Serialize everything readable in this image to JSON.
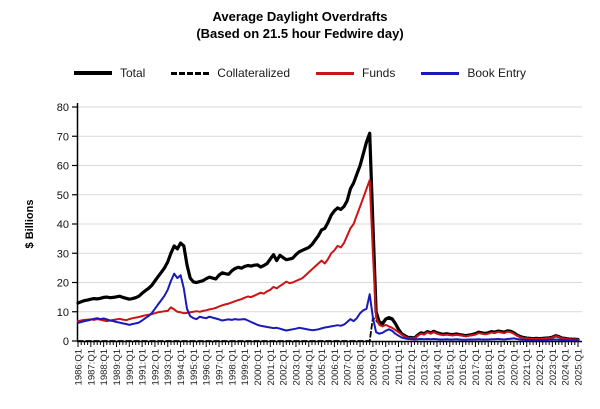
{
  "header": {
    "title": "Average Daylight Overdrafts",
    "subtitle": "(Based on 21.5 hour Fedwire day)"
  },
  "legend": {
    "items": [
      {
        "key": "total",
        "label": "Total",
        "color": "#000000",
        "dash": "solid",
        "thick": true
      },
      {
        "key": "collateralized",
        "label": "Collateralized",
        "color": "#000000",
        "dash": "dashed",
        "thick": false
      },
      {
        "key": "funds",
        "label": "Funds",
        "color": "#cc1414",
        "dash": "solid",
        "thick": false
      },
      {
        "key": "book-entry",
        "label": "Book Entry",
        "color": "#1a1ab8",
        "dash": "solid",
        "thick": false
      }
    ]
  },
  "y_axis": {
    "label": "$ Billions",
    "tick_values": [
      0,
      10,
      20,
      30,
      40,
      50,
      60,
      70,
      80
    ],
    "min": 0,
    "max": 80
  },
  "x_axis": {
    "labels": [
      "1986:Q1",
      "1987:Q1",
      "1988:Q1",
      "1989:Q1",
      "1990:Q1",
      "1991:Q1",
      "1992:Q1",
      "1993:Q1",
      "1994:Q1",
      "1995:Q1",
      "1996:Q1",
      "1997:Q1",
      "1998:Q1",
      "1999:Q1",
      "2000:Q1",
      "2001:Q1",
      "2002:Q1",
      "2003:Q1",
      "2004:Q1",
      "2005:Q1",
      "2006:Q1",
      "2007:Q1",
      "2008:Q1",
      "2009:Q1",
      "2010:Q1",
      "2011:Q1",
      "2012:Q1",
      "2013:Q1",
      "2014:Q1",
      "2015:Q1",
      "2016:Q1",
      "2017:Q1",
      "2018:Q1",
      "2019:Q1",
      "2020:Q1",
      "2021:Q1",
      "2022:Q1",
      "2023:Q1",
      "2024:Q1",
      "2025:Q1"
    ]
  },
  "chart_data": {
    "type": "line",
    "title": "Average Daylight Overdrafts",
    "subtitle": "(Based on 21.5 hour Fedwire day)",
    "xlabel": "",
    "ylabel": "$ Billions",
    "x_unit": "quarter",
    "x_start": "1986:Q1",
    "x_end": "2025:Q1",
    "x_count": 157,
    "y_min": 0,
    "y_max": 80,
    "grid": "horizontal",
    "legend_position": "top",
    "series": [
      {
        "key": "total",
        "name": "Total",
        "color": "#000000",
        "width": 3.2,
        "dash": null,
        "values": [
          13.0,
          13.4,
          13.8,
          14.0,
          14.3,
          14.5,
          14.4,
          14.6,
          14.9,
          15.0,
          14.8,
          14.9,
          15.1,
          15.3,
          14.9,
          14.6,
          14.3,
          14.5,
          14.8,
          15.3,
          16.3,
          17.2,
          18.0,
          19.0,
          20.5,
          22.0,
          23.5,
          25.0,
          27.0,
          30.0,
          32.5,
          31.5,
          33.5,
          32.5,
          26.0,
          21.5,
          20.2,
          20.0,
          20.3,
          20.6,
          21.3,
          21.8,
          21.5,
          21.2,
          22.5,
          23.3,
          23.0,
          22.8,
          24.0,
          24.8,
          25.2,
          24.9,
          25.5,
          25.8,
          25.6,
          25.9,
          26.0,
          25.3,
          25.8,
          26.5,
          28.0,
          29.5,
          27.5,
          29.3,
          28.5,
          27.8,
          28.0,
          28.3,
          29.5,
          30.5,
          31.0,
          31.5,
          32.0,
          33.0,
          34.5,
          36.0,
          38.0,
          38.5,
          40.5,
          43.0,
          44.5,
          45.5,
          45.0,
          46.0,
          48.0,
          52.0,
          54.0,
          57.0,
          60.0,
          64.0,
          68.0,
          71.0,
          40.0,
          10.0,
          6.5,
          6.0,
          7.5,
          8.0,
          7.6,
          6.0,
          4.0,
          2.5,
          1.8,
          1.2,
          1.2,
          1.0,
          2.0,
          2.8,
          2.5,
          3.2,
          2.8,
          3.3,
          2.8,
          2.5,
          2.3,
          2.5,
          2.3,
          2.2,
          2.4,
          2.2,
          2.0,
          1.8,
          2.0,
          2.2,
          2.5,
          3.0,
          2.8,
          2.6,
          2.8,
          3.2,
          3.0,
          3.4,
          3.2,
          3.0,
          3.5,
          3.3,
          2.8,
          2.0,
          1.5,
          1.2,
          1.0,
          0.9,
          0.8,
          0.9,
          0.8,
          0.9,
          1.0,
          1.1,
          1.3,
          1.8,
          1.5,
          1.0,
          0.9,
          0.7,
          0.6,
          0.6,
          0.5
        ]
      },
      {
        "key": "collateralized",
        "name": "Collateralized",
        "color": "#000000",
        "width": 1.8,
        "dash": "5 3",
        "values": [
          0,
          0,
          0,
          0,
          0,
          0,
          0,
          0,
          0,
          0,
          0,
          0,
          0,
          0,
          0,
          0,
          0,
          0,
          0,
          0,
          0,
          0,
          0,
          0,
          0,
          0,
          0,
          0,
          0,
          0,
          0,
          0,
          0,
          0,
          0,
          0,
          0,
          0,
          0,
          0,
          0,
          0,
          0,
          0,
          0,
          0,
          0,
          0,
          0,
          0,
          0,
          0,
          0,
          0,
          0,
          0,
          0,
          0,
          0,
          0,
          0,
          0,
          0,
          0,
          0,
          0,
          0,
          0,
          0,
          0,
          0,
          0,
          0,
          0,
          0,
          0,
          0,
          0,
          0,
          0,
          0,
          0,
          0,
          0,
          0,
          0,
          0,
          0,
          0,
          0,
          0,
          0,
          8.0,
          7.0,
          5.8,
          5.5,
          7.0,
          7.6,
          7.2,
          5.7,
          3.8,
          2.4,
          1.7,
          1.1,
          1.1,
          0.9,
          1.9,
          2.7,
          2.4,
          3.1,
          2.7,
          3.2,
          2.7,
          2.4,
          2.2,
          2.4,
          2.2,
          2.1,
          2.3,
          2.1,
          1.9,
          1.7,
          1.9,
          2.1,
          2.4,
          2.9,
          2.7,
          2.5,
          2.7,
          3.1,
          2.9,
          3.3,
          3.1,
          2.9,
          3.4,
          3.2,
          2.7,
          1.9,
          1.4,
          1.1,
          0.95,
          0.85,
          0.75,
          0.85,
          0.75,
          0.85,
          0.95,
          1.05,
          1.25,
          1.7,
          1.4,
          0.95,
          0.85,
          0.65,
          0.55,
          0.55,
          0.45
        ]
      },
      {
        "key": "funds",
        "name": "Funds",
        "color": "#cc1414",
        "width": 2,
        "dash": null,
        "values": [
          6.8,
          7.0,
          7.2,
          7.3,
          7.4,
          7.2,
          7.5,
          7.3,
          7.0,
          6.8,
          7.0,
          7.2,
          7.4,
          7.6,
          7.3,
          7.1,
          7.5,
          7.8,
          8.0,
          8.2,
          8.5,
          8.8,
          9.0,
          9.2,
          9.5,
          9.8,
          10.0,
          10.2,
          10.3,
          11.5,
          10.8,
          10.0,
          9.8,
          9.5,
          9.6,
          9.8,
          10.0,
          10.2,
          10.0,
          10.3,
          10.5,
          10.8,
          11.0,
          11.3,
          11.8,
          12.2,
          12.5,
          12.8,
          13.2,
          13.6,
          14.0,
          14.3,
          14.8,
          15.2,
          15.0,
          15.5,
          16.0,
          16.5,
          16.2,
          17.0,
          17.5,
          18.5,
          18.0,
          18.8,
          19.5,
          20.3,
          19.8,
          20.0,
          20.5,
          21.0,
          21.5,
          22.5,
          23.5,
          24.5,
          25.5,
          26.5,
          27.5,
          26.5,
          28.0,
          30.0,
          31.0,
          32.5,
          32.0,
          33.5,
          36.0,
          38.5,
          40.0,
          43.0,
          46.0,
          49.0,
          52.0,
          55.0,
          30.0,
          8.0,
          5.5,
          5.0,
          5.5,
          5.0,
          4.5,
          3.8,
          3.0,
          2.2,
          1.5,
          1.0,
          1.0,
          0.9,
          1.8,
          2.5,
          2.2,
          3.0,
          2.5,
          3.0,
          2.5,
          2.2,
          2.0,
          2.2,
          2.0,
          1.9,
          2.1,
          2.0,
          1.8,
          1.6,
          1.8,
          2.0,
          2.2,
          2.7,
          2.5,
          2.3,
          2.5,
          2.9,
          2.7,
          3.1,
          2.9,
          2.7,
          3.2,
          3.0,
          2.5,
          1.8,
          1.3,
          1.0,
          0.9,
          0.8,
          0.7,
          0.8,
          0.7,
          0.8,
          0.9,
          1.0,
          1.2,
          1.7,
          1.4,
          0.9,
          0.8,
          0.6,
          0.5,
          0.5,
          0.4
        ]
      },
      {
        "key": "book-entry",
        "name": "Book Entry",
        "color": "#1a1ab8",
        "width": 2,
        "dash": null,
        "values": [
          6.2,
          6.5,
          6.8,
          7.0,
          7.3,
          7.6,
          7.8,
          7.5,
          7.7,
          7.4,
          7.0,
          6.8,
          6.5,
          6.3,
          6.0,
          5.8,
          5.5,
          5.8,
          6.0,
          6.3,
          7.0,
          7.8,
          8.5,
          9.5,
          11.0,
          12.5,
          14.0,
          15.5,
          17.5,
          20.5,
          23.0,
          21.5,
          22.5,
          18.0,
          11.0,
          8.5,
          7.8,
          7.5,
          8.3,
          8.0,
          7.8,
          8.3,
          8.0,
          7.7,
          7.4,
          7.0,
          7.2,
          7.4,
          7.2,
          7.5,
          7.3,
          7.4,
          7.5,
          7.0,
          6.5,
          6.0,
          5.5,
          5.2,
          5.0,
          4.8,
          4.6,
          4.4,
          4.5,
          4.2,
          3.9,
          3.6,
          3.8,
          4.0,
          4.2,
          4.5,
          4.3,
          4.1,
          3.9,
          3.7,
          3.8,
          4.0,
          4.3,
          4.6,
          4.8,
          5.0,
          5.2,
          5.4,
          5.2,
          5.6,
          6.5,
          7.5,
          6.8,
          7.8,
          9.5,
          10.5,
          11.0,
          16.0,
          8.0,
          3.0,
          2.5,
          2.8,
          3.5,
          4.0,
          3.5,
          2.5,
          1.8,
          1.2,
          0.9,
          0.7,
          0.6,
          0.5,
          0.6,
          0.7,
          0.6,
          0.7,
          0.6,
          0.7,
          0.6,
          0.5,
          0.5,
          0.6,
          0.5,
          0.5,
          0.6,
          0.5,
          0.4,
          0.4,
          0.5,
          0.5,
          0.5,
          0.6,
          0.5,
          0.5,
          0.5,
          0.6,
          0.6,
          0.7,
          0.6,
          0.5,
          0.7,
          0.8,
          0.9,
          0.7,
          0.5,
          0.4,
          0.3,
          0.3,
          0.3,
          0.3,
          0.3,
          0.3,
          0.3,
          0.4,
          0.4,
          0.5,
          0.4,
          0.3,
          0.3,
          0.2,
          0.2,
          0.2,
          0.2
        ]
      }
    ]
  }
}
